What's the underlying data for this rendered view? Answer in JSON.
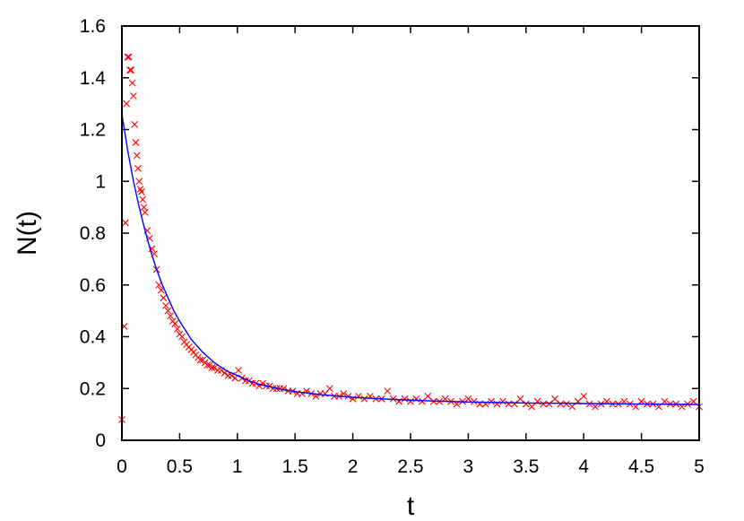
{
  "chart_data": {
    "type": "scatter",
    "xlabel": "t",
    "ylabel": "N(t)",
    "xlim": [
      0,
      5
    ],
    "ylim": [
      0,
      1.6
    ],
    "x_ticks": [
      0,
      0.5,
      1,
      1.5,
      2,
      2.5,
      3,
      3.5,
      4,
      4.5,
      5
    ],
    "x_tick_labels": [
      "0",
      "0.5",
      "1",
      "1.5",
      "2",
      "2.5",
      "3",
      "3.5",
      "4",
      "4.5",
      "5"
    ],
    "y_ticks": [
      0,
      0.2,
      0.4,
      0.6,
      0.8,
      1,
      1.2,
      1.4,
      1.6
    ],
    "y_tick_labels": [
      "0",
      "0.2",
      "0.4",
      "0.6",
      "0.8",
      "1",
      "1.2",
      "1.4",
      "1.6"
    ],
    "grid": false,
    "legend": "none",
    "colors": {
      "points": "#ff0000",
      "fit_line": "#0000ff",
      "axes": "#000000"
    },
    "series": [
      {
        "kind": "scatter",
        "marker": "x",
        "x": [
          0.0,
          0.02,
          0.03,
          0.04,
          0.05,
          0.06,
          0.07,
          0.08,
          0.09,
          0.1,
          0.11,
          0.12,
          0.13,
          0.14,
          0.15,
          0.16,
          0.17,
          0.18,
          0.19,
          0.2,
          0.22,
          0.24,
          0.26,
          0.28,
          0.3,
          0.32,
          0.34,
          0.36,
          0.38,
          0.4,
          0.42,
          0.44,
          0.46,
          0.48,
          0.5,
          0.52,
          0.54,
          0.56,
          0.58,
          0.6,
          0.62,
          0.64,
          0.66,
          0.68,
          0.7,
          0.72,
          0.74,
          0.76,
          0.78,
          0.8,
          0.83,
          0.86,
          0.89,
          0.92,
          0.95,
          0.98,
          1.01,
          1.04,
          1.07,
          1.1,
          1.13,
          1.16,
          1.19,
          1.22,
          1.25,
          1.28,
          1.31,
          1.34,
          1.37,
          1.4,
          1.44,
          1.48,
          1.52,
          1.56,
          1.6,
          1.64,
          1.68,
          1.72,
          1.76,
          1.8,
          1.84,
          1.88,
          1.92,
          1.96,
          2.0,
          2.05,
          2.1,
          2.15,
          2.2,
          2.25,
          2.3,
          2.35,
          2.4,
          2.45,
          2.5,
          2.55,
          2.6,
          2.65,
          2.7,
          2.75,
          2.8,
          2.85,
          2.9,
          2.95,
          3.0,
          3.05,
          3.1,
          3.15,
          3.2,
          3.25,
          3.3,
          3.35,
          3.4,
          3.45,
          3.5,
          3.55,
          3.6,
          3.65,
          3.7,
          3.75,
          3.8,
          3.85,
          3.9,
          3.95,
          4.0,
          4.05,
          4.1,
          4.15,
          4.2,
          4.25,
          4.3,
          4.35,
          4.4,
          4.45,
          4.5,
          4.55,
          4.6,
          4.65,
          4.7,
          4.75,
          4.8,
          4.85,
          4.9,
          4.95,
          5.0
        ],
        "y": [
          0.08,
          0.44,
          0.84,
          1.3,
          1.48,
          1.48,
          1.43,
          1.43,
          1.38,
          1.33,
          1.22,
          1.15,
          1.1,
          1.05,
          1.0,
          0.97,
          0.96,
          0.93,
          0.9,
          0.88,
          0.81,
          0.78,
          0.74,
          0.72,
          0.66,
          0.6,
          0.58,
          0.55,
          0.52,
          0.5,
          0.48,
          0.46,
          0.45,
          0.43,
          0.41,
          0.4,
          0.38,
          0.37,
          0.36,
          0.35,
          0.34,
          0.33,
          0.32,
          0.31,
          0.31,
          0.3,
          0.29,
          0.29,
          0.28,
          0.28,
          0.27,
          0.27,
          0.26,
          0.25,
          0.25,
          0.24,
          0.27,
          0.24,
          0.23,
          0.23,
          0.22,
          0.22,
          0.21,
          0.22,
          0.21,
          0.21,
          0.2,
          0.2,
          0.2,
          0.2,
          0.19,
          0.19,
          0.18,
          0.18,
          0.19,
          0.18,
          0.17,
          0.18,
          0.18,
          0.2,
          0.17,
          0.17,
          0.18,
          0.17,
          0.16,
          0.17,
          0.16,
          0.17,
          0.16,
          0.16,
          0.19,
          0.16,
          0.15,
          0.16,
          0.15,
          0.16,
          0.15,
          0.17,
          0.15,
          0.15,
          0.16,
          0.15,
          0.14,
          0.15,
          0.16,
          0.15,
          0.14,
          0.14,
          0.15,
          0.14,
          0.15,
          0.14,
          0.14,
          0.16,
          0.14,
          0.13,
          0.15,
          0.14,
          0.14,
          0.16,
          0.14,
          0.14,
          0.13,
          0.15,
          0.17,
          0.14,
          0.13,
          0.14,
          0.15,
          0.14,
          0.14,
          0.15,
          0.14,
          0.13,
          0.15,
          0.14,
          0.14,
          0.13,
          0.15,
          0.14,
          0.14,
          0.13,
          0.14,
          0.15,
          0.13
        ]
      },
      {
        "kind": "line",
        "x": [
          0.0,
          0.05,
          0.1,
          0.15,
          0.2,
          0.25,
          0.3,
          0.35,
          0.4,
          0.45,
          0.5,
          0.6,
          0.7,
          0.8,
          0.9,
          1.0,
          1.1,
          1.2,
          1.3,
          1.4,
          1.5,
          1.75,
          2.0,
          2.25,
          2.5,
          2.75,
          3.0,
          3.25,
          3.5,
          3.75,
          4.0,
          4.25,
          4.5,
          4.75,
          5.0
        ],
        "y": [
          1.26,
          1.12,
          1.0,
          0.9,
          0.81,
          0.73,
          0.66,
          0.6,
          0.55,
          0.5,
          0.46,
          0.39,
          0.34,
          0.3,
          0.27,
          0.25,
          0.23,
          0.215,
          0.205,
          0.195,
          0.188,
          0.175,
          0.166,
          0.16,
          0.155,
          0.151,
          0.148,
          0.146,
          0.144,
          0.143,
          0.142,
          0.141,
          0.14,
          0.139,
          0.138
        ]
      }
    ]
  }
}
